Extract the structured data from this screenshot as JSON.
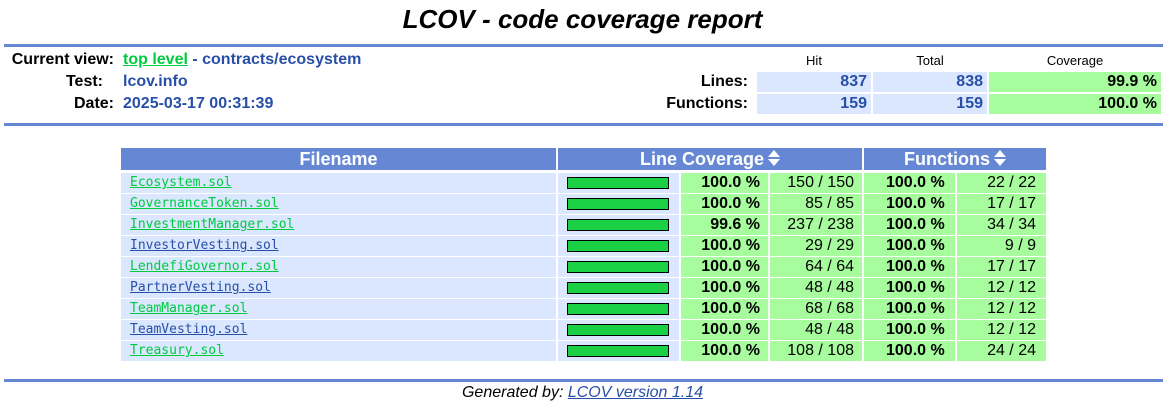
{
  "title": "LCOV - code coverage report",
  "header": {
    "current_view_label": "Current view:",
    "view_link": "top level",
    "view_sep": " - ",
    "view_path": "contracts/ecosystem",
    "test_label": "Test:",
    "test_value": "lcov.info",
    "date_label": "Date:",
    "date_value": "2025-03-17 00:31:39"
  },
  "summary": {
    "col_hit": "Hit",
    "col_total": "Total",
    "col_coverage": "Coverage",
    "lines_label": "Lines:",
    "lines_hit": "837",
    "lines_total": "838",
    "lines_coverage": "99.9 %",
    "functions_label": "Functions:",
    "functions_hit": "159",
    "functions_total": "159",
    "functions_coverage": "100.0 %"
  },
  "table": {
    "col_filename": "Filename",
    "col_line_coverage": "Line Coverage",
    "col_functions": "Functions",
    "rows": [
      {
        "file": "Ecosystem.sol",
        "link": "green",
        "bar": 100,
        "pct": "100.0 %",
        "lines": "150 / 150",
        "fpct": "100.0 %",
        "funcs": "22 / 22"
      },
      {
        "file": "GovernanceToken.sol",
        "link": "green",
        "bar": 100,
        "pct": "100.0 %",
        "lines": "85 / 85",
        "fpct": "100.0 %",
        "funcs": "17 / 17"
      },
      {
        "file": "InvestmentManager.sol",
        "link": "green",
        "bar": 99.6,
        "pct": "99.6 %",
        "lines": "237 / 238",
        "fpct": "100.0 %",
        "funcs": "34 / 34"
      },
      {
        "file": "InvestorVesting.sol",
        "link": "blue",
        "bar": 100,
        "pct": "100.0 %",
        "lines": "29 / 29",
        "fpct": "100.0 %",
        "funcs": "9 / 9"
      },
      {
        "file": "LendefiGovernor.sol",
        "link": "green",
        "bar": 100,
        "pct": "100.0 %",
        "lines": "64 / 64",
        "fpct": "100.0 %",
        "funcs": "17 / 17"
      },
      {
        "file": "PartnerVesting.sol",
        "link": "blue",
        "bar": 100,
        "pct": "100.0 %",
        "lines": "48 / 48",
        "fpct": "100.0 %",
        "funcs": "12 / 12"
      },
      {
        "file": "TeamManager.sol",
        "link": "green",
        "bar": 100,
        "pct": "100.0 %",
        "lines": "68 / 68",
        "fpct": "100.0 %",
        "funcs": "12 / 12"
      },
      {
        "file": "TeamVesting.sol",
        "link": "blue",
        "bar": 100,
        "pct": "100.0 %",
        "lines": "48 / 48",
        "fpct": "100.0 %",
        "funcs": "12 / 12"
      },
      {
        "file": "Treasury.sol",
        "link": "green",
        "bar": 100,
        "pct": "100.0 %",
        "lines": "108 / 108",
        "fpct": "100.0 %",
        "funcs": "24 / 24"
      }
    ]
  },
  "footer": {
    "prefix": "Generated by: ",
    "link": "LCOV version 1.14"
  },
  "colors": {
    "accent": "#6688d4",
    "link_blue": "#284fa8",
    "link_green": "#00cb40",
    "cell_blue": "#dae7fe",
    "cell_green": "#a7fc9d",
    "bar_fill": "#1bd045"
  }
}
